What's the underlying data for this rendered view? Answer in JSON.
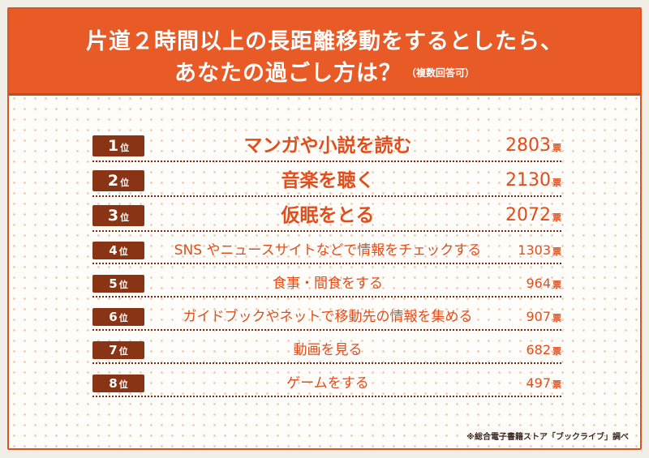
{
  "title": {
    "line1": "片道２時間以上の長距離移動をするとしたら、",
    "line2": "あなたの過ごし方は？",
    "note": "（複数回答可）"
  },
  "rank_unit": "位",
  "vote_unit": "票",
  "footnote": "※総合電子書籍ストア「ブックライブ」調べ",
  "colors": {
    "banner": "#e85a26",
    "label_text": "#e04e1c",
    "badge": "#8a3416",
    "border": "#d9541f"
  },
  "chart_data": {
    "type": "table",
    "columns": [
      "rank",
      "answer",
      "votes"
    ],
    "rows": [
      {
        "rank": "1",
        "label": "マンガや小説を読む",
        "value": 2803
      },
      {
        "rank": "2",
        "label": "音楽を聴く",
        "value": 2130
      },
      {
        "rank": "3",
        "label": "仮眠をとる",
        "value": 2072
      },
      {
        "rank": "4",
        "label": "SNS やニュースサイトなどで情報をチェックする",
        "value": 1303
      },
      {
        "rank": "5",
        "label": "食事・間食をする",
        "value": 964
      },
      {
        "rank": "6",
        "label": "ガイドブックやネットで移動先の情報を集める",
        "value": 907
      },
      {
        "rank": "7",
        "label": "動画を見る",
        "value": 682
      },
      {
        "rank": "8",
        "label": "ゲームをする",
        "value": 497
      }
    ]
  }
}
